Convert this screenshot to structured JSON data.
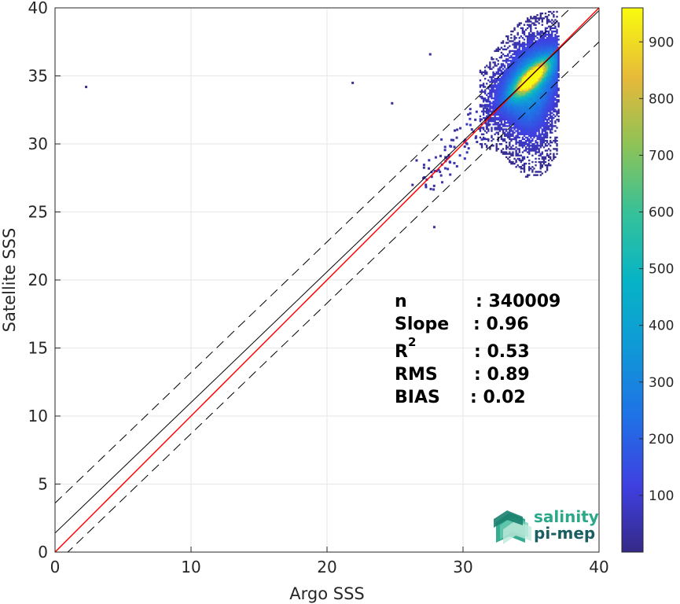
{
  "chart_data": {
    "type": "heatmap",
    "subtype": "density-scatter",
    "title": "",
    "xlabel": "Argo SSS",
    "ylabel": "Satellite SSS",
    "xlim": [
      0,
      40
    ],
    "ylim": [
      0,
      40
    ],
    "xticks": [
      0,
      10,
      20,
      30,
      40
    ],
    "yticks": [
      0,
      5,
      10,
      15,
      20,
      25,
      30,
      35,
      40
    ],
    "grid": true,
    "colorbar": {
      "colormap": "parula",
      "range": [
        0,
        960
      ],
      "ticks": [
        100,
        200,
        300,
        400,
        500,
        600,
        700,
        800,
        900
      ]
    },
    "lines": [
      {
        "name": "one-to-one",
        "color": "#ff0000",
        "style": "solid",
        "slope": 1.0,
        "intercept": 0.0
      },
      {
        "name": "regression-fit",
        "color": "#000000",
        "style": "solid",
        "slope": 0.96,
        "intercept": 1.4
      },
      {
        "name": "upper-bound",
        "color": "#000000",
        "style": "dashed",
        "slope": 0.96,
        "intercept": 3.6
      },
      {
        "name": "lower-bound",
        "color": "#000000",
        "style": "dashed",
        "slope": 0.96,
        "intercept": -0.9
      }
    ],
    "density": {
      "center": [
        35.0,
        34.8
      ],
      "x_range": [
        31.5,
        37.0
      ],
      "y_range": [
        22.0,
        40.0
      ],
      "peak_count": 960
    },
    "outliers": [
      {
        "x": 2.2,
        "y": 34.1
      },
      {
        "x": 21.8,
        "y": 34.4
      },
      {
        "x": 24.7,
        "y": 32.9
      },
      {
        "x": 27.5,
        "y": 36.5
      },
      {
        "x": 27.8,
        "y": 23.8
      },
      {
        "x": 26.2,
        "y": 26.9
      },
      {
        "x": 26.5,
        "y": 28.7
      },
      {
        "x": 27.0,
        "y": 27.4
      }
    ],
    "stats": [
      {
        "label": "n",
        "value": ": 340009"
      },
      {
        "label": "Slope",
        "value": ": 0.96"
      },
      {
        "label": "R",
        "sup": "2",
        "value": ": 0.53"
      },
      {
        "label": "RMS",
        "value": ": 0.89"
      },
      {
        "label": "BIAS",
        "value": ": 0.02"
      }
    ]
  },
  "logo": {
    "line1": "salinity",
    "line2": "pi-mep",
    "color1": "#2aa889",
    "color2": "#1b5e62"
  }
}
